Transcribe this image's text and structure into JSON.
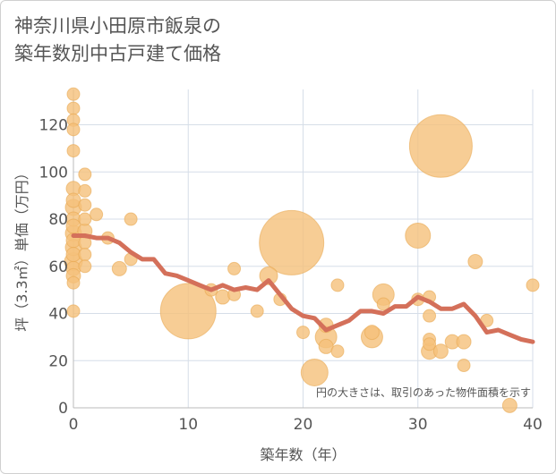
{
  "chart_data": {
    "type": "scatter",
    "title": [
      "神奈川県小田原市飯泉の",
      "築年数別中古戸建て価格"
    ],
    "xlabel": "築年数（年）",
    "ylabel": "坪（3.3㎡）単価（万円）",
    "note": "円の大きさは、取引のあった物件面積を示す",
    "xlim": [
      0,
      40
    ],
    "ylim": [
      0,
      135
    ],
    "xticks": [
      0,
      10,
      20,
      30,
      40
    ],
    "yticks": [
      0,
      20,
      40,
      60,
      80,
      100,
      120
    ],
    "grid": true,
    "colors": {
      "bubble": "#f5c07a",
      "bubble_stroke": "#e8a852",
      "trend": "#d4705a",
      "grid": "#d6dee8"
    },
    "series": [
      {
        "type": "bubble",
        "points": [
          {
            "x": 0,
            "y": 133,
            "s": 7
          },
          {
            "x": 0,
            "y": 127,
            "s": 7
          },
          {
            "x": 0,
            "y": 122,
            "s": 7
          },
          {
            "x": 0,
            "y": 118,
            "s": 7
          },
          {
            "x": 0,
            "y": 109,
            "s": 7
          },
          {
            "x": 0,
            "y": 93,
            "s": 8
          },
          {
            "x": 0,
            "y": 88,
            "s": 8
          },
          {
            "x": 0,
            "y": 85,
            "s": 9
          },
          {
            "x": 0,
            "y": 80,
            "s": 8
          },
          {
            "x": 0,
            "y": 77,
            "s": 8
          },
          {
            "x": 0,
            "y": 74,
            "s": 9
          },
          {
            "x": 0,
            "y": 71,
            "s": 8
          },
          {
            "x": 0,
            "y": 68,
            "s": 9
          },
          {
            "x": 0,
            "y": 65,
            "s": 8
          },
          {
            "x": 0,
            "y": 62,
            "s": 10
          },
          {
            "x": 0,
            "y": 59,
            "s": 8
          },
          {
            "x": 0,
            "y": 56,
            "s": 8
          },
          {
            "x": 0,
            "y": 53,
            "s": 7
          },
          {
            "x": 0,
            "y": 41,
            "s": 7
          },
          {
            "x": 1,
            "y": 99,
            "s": 7
          },
          {
            "x": 1,
            "y": 92,
            "s": 7
          },
          {
            "x": 1,
            "y": 86,
            "s": 7
          },
          {
            "x": 1,
            "y": 80,
            "s": 7
          },
          {
            "x": 1,
            "y": 75,
            "s": 8
          },
          {
            "x": 1,
            "y": 70,
            "s": 7
          },
          {
            "x": 1,
            "y": 65,
            "s": 7
          },
          {
            "x": 1,
            "y": 60,
            "s": 7
          },
          {
            "x": 2,
            "y": 82,
            "s": 7
          },
          {
            "x": 3,
            "y": 72,
            "s": 7
          },
          {
            "x": 4,
            "y": 59,
            "s": 8
          },
          {
            "x": 5,
            "y": 80,
            "s": 7
          },
          {
            "x": 5,
            "y": 63,
            "s": 7
          },
          {
            "x": 10,
            "y": 41,
            "s": 31
          },
          {
            "x": 12,
            "y": 50,
            "s": 7
          },
          {
            "x": 13,
            "y": 47,
            "s": 8
          },
          {
            "x": 14,
            "y": 59,
            "s": 7
          },
          {
            "x": 14,
            "y": 48,
            "s": 7
          },
          {
            "x": 16,
            "y": 41,
            "s": 7
          },
          {
            "x": 17,
            "y": 56,
            "s": 10
          },
          {
            "x": 18,
            "y": 46,
            "s": 7
          },
          {
            "x": 19,
            "y": 70,
            "s": 36
          },
          {
            "x": 20,
            "y": 32,
            "s": 7
          },
          {
            "x": 21,
            "y": 15,
            "s": 15
          },
          {
            "x": 22,
            "y": 35,
            "s": 8
          },
          {
            "x": 22,
            "y": 30,
            "s": 12
          },
          {
            "x": 22,
            "y": 26,
            "s": 8
          },
          {
            "x": 23,
            "y": 52,
            "s": 7
          },
          {
            "x": 23,
            "y": 24,
            "s": 7
          },
          {
            "x": 26,
            "y": 32,
            "s": 8
          },
          {
            "x": 26,
            "y": 30,
            "s": 12
          },
          {
            "x": 27,
            "y": 48,
            "s": 12
          },
          {
            "x": 27,
            "y": 44,
            "s": 7
          },
          {
            "x": 30,
            "y": 73,
            "s": 14
          },
          {
            "x": 30,
            "y": 46,
            "s": 7
          },
          {
            "x": 31,
            "y": 47,
            "s": 7
          },
          {
            "x": 31,
            "y": 39,
            "s": 7
          },
          {
            "x": 31,
            "y": 29,
            "s": 7
          },
          {
            "x": 31,
            "y": 27,
            "s": 7
          },
          {
            "x": 31,
            "y": 24,
            "s": 9
          },
          {
            "x": 32,
            "y": 111,
            "s": 35
          },
          {
            "x": 32,
            "y": 24,
            "s": 8
          },
          {
            "x": 33,
            "y": 28,
            "s": 8
          },
          {
            "x": 34,
            "y": 28,
            "s": 8
          },
          {
            "x": 34,
            "y": 18,
            "s": 7
          },
          {
            "x": 35,
            "y": 62,
            "s": 8
          },
          {
            "x": 36,
            "y": 37,
            "s": 7
          },
          {
            "x": 38,
            "y": 1,
            "s": 8
          },
          {
            "x": 40,
            "y": 52,
            "s": 7
          }
        ]
      },
      {
        "type": "line",
        "x": [
          0,
          1,
          2,
          3,
          4,
          5,
          6,
          7,
          8,
          9,
          10,
          11,
          12,
          13,
          14,
          15,
          16,
          17,
          18,
          19,
          20,
          21,
          22,
          23,
          24,
          25,
          26,
          27,
          28,
          29,
          30,
          31,
          32,
          33,
          34,
          35,
          36,
          37,
          38,
          39,
          40
        ],
        "y": [
          73,
          73,
          72,
          72,
          70,
          66,
          63,
          63,
          57,
          56,
          54,
          52,
          50,
          52,
          50,
          51,
          50,
          54,
          48,
          42,
          39,
          38,
          33,
          35,
          37,
          41,
          41,
          40,
          43,
          43,
          47,
          45,
          42,
          42,
          44,
          39,
          32,
          33,
          31,
          29,
          28
        ]
      }
    ]
  }
}
